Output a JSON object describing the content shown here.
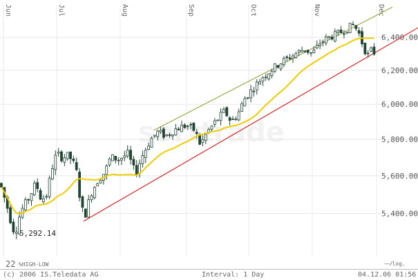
{
  "chart_data": {
    "type": "candlestick",
    "y_scale": "log",
    "months": [
      "Jun",
      "Jul",
      "Aug",
      "Sep",
      "Oct",
      "Nov",
      "Dec"
    ],
    "y_ticks": [
      "6,400.00",
      "6,200.00",
      "6,000.00",
      "5,800.00",
      "5,600.00",
      "5,400.00"
    ],
    "y_tick_values": [
      6400,
      6200,
      6000,
      5800,
      5600,
      5400
    ],
    "ylim": [
      5180,
      6600
    ],
    "low_annotation": "5,292.14",
    "low_value": 5292.14,
    "grid": true,
    "moving_average": "yellow 20-day line",
    "trend_channel": {
      "upper": {
        "start_value": 5850,
        "end_value": 6590,
        "color": "#889922"
      },
      "lower": {
        "start_value": 5360,
        "end_value": 6460,
        "color": "#dd2222"
      }
    },
    "watermark": "sorttrade",
    "colors": {
      "up": "#ffffff",
      "down": "#224433",
      "ma": "#eecc00",
      "grid": "#e8e8e8"
    }
  },
  "legend": {
    "left_number": "22",
    "left_text": "%HIGH-LOW",
    "right_text": "log."
  },
  "footer": {
    "copyright": "(c) 2006 IS.Teledata AG",
    "interval": "Interval: 1 Day",
    "timestamp": "04.12.06 01:56"
  }
}
